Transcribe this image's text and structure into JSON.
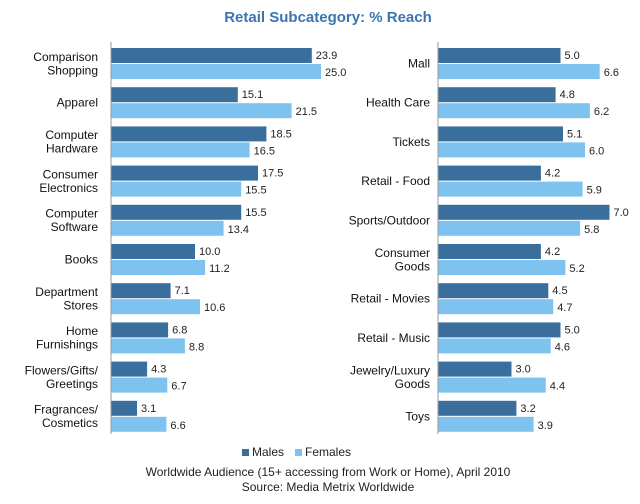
{
  "colors": {
    "males": "#3a6f9d",
    "females": "#7ec3ef",
    "title": "#3a75b0",
    "axis": "#9a9a9a"
  },
  "chart_data": [
    {
      "type": "bar",
      "orientation": "horizontal",
      "title": "Retail Subcategory: % Reach",
      "categories": [
        [
          "Comparison",
          "Shopping"
        ],
        [
          "Apparel"
        ],
        [
          "Computer",
          "Hardware"
        ],
        [
          "Consumer",
          "Electronics"
        ],
        [
          "Computer",
          "Software"
        ],
        [
          "Books"
        ],
        [
          "Department",
          "Stores"
        ],
        [
          "Home",
          "Furnishings"
        ],
        [
          "Flowers/Gifts/",
          "Greetings"
        ],
        [
          "Fragrances/",
          "Cosmetics"
        ]
      ],
      "series": [
        {
          "name": "Males",
          "values": [
            23.9,
            15.1,
            18.5,
            17.5,
            15.5,
            10.0,
            7.1,
            6.8,
            4.3,
            3.1
          ]
        },
        {
          "name": "Females",
          "values": [
            25.0,
            21.5,
            16.5,
            15.5,
            13.4,
            11.2,
            10.6,
            8.8,
            6.7,
            6.6
          ]
        }
      ],
      "xlim": [
        0,
        30
      ],
      "value_labels": {
        "Males": [
          "23.9",
          "15.1",
          "18.5",
          "17.5",
          "15.5",
          "10.0",
          "7.1",
          "6.8",
          "4.3",
          "3.1"
        ],
        "Females": [
          "25.0",
          "21.5",
          "16.5",
          "15.5",
          "13.4",
          "11.2",
          "10.6",
          "8.8",
          "6.7",
          "6.6"
        ]
      },
      "grid": false
    },
    {
      "type": "bar",
      "orientation": "horizontal",
      "categories": [
        [
          "Mall"
        ],
        [
          "Health Care"
        ],
        [
          "Tickets"
        ],
        [
          "Retail - Food"
        ],
        [
          "Sports/Outdoor"
        ],
        [
          "Consumer",
          "Goods"
        ],
        [
          "Retail - Movies"
        ],
        [
          "Retail - Music"
        ],
        [
          "Jewelry/Luxury",
          "Goods"
        ],
        [
          "Toys"
        ]
      ],
      "series": [
        {
          "name": "Males",
          "values": [
            5.0,
            4.8,
            5.1,
            4.2,
            7.0,
            4.2,
            4.5,
            5.0,
            3.0,
            3.2
          ]
        },
        {
          "name": "Females",
          "values": [
            6.6,
            6.2,
            6.0,
            5.9,
            5.8,
            5.2,
            4.7,
            4.6,
            4.4,
            3.9
          ]
        }
      ],
      "xlim": [
        0,
        7.55
      ],
      "value_labels": {
        "Males": [
          "5.0",
          "4.8",
          "5.1",
          "4.2",
          "7.0",
          "4.2",
          "4.5",
          "5.0",
          "3.0",
          "3.2"
        ],
        "Females": [
          "6.6",
          "6.2",
          "6.0",
          "5.9",
          "5.8",
          "5.2",
          "4.7",
          "4.6",
          "4.4",
          "3.9"
        ]
      },
      "grid": false
    }
  ],
  "legend": {
    "position": "bottom",
    "items": [
      {
        "label": "Males",
        "color": "#3a6f9d"
      },
      {
        "label": "Females",
        "color": "#7ec3ef"
      }
    ]
  },
  "footer": {
    "line1": "Worldwide Audience (15+ accessing from Work or Home), April 2010",
    "line2": "Source: Media Metrix Worldwide"
  }
}
